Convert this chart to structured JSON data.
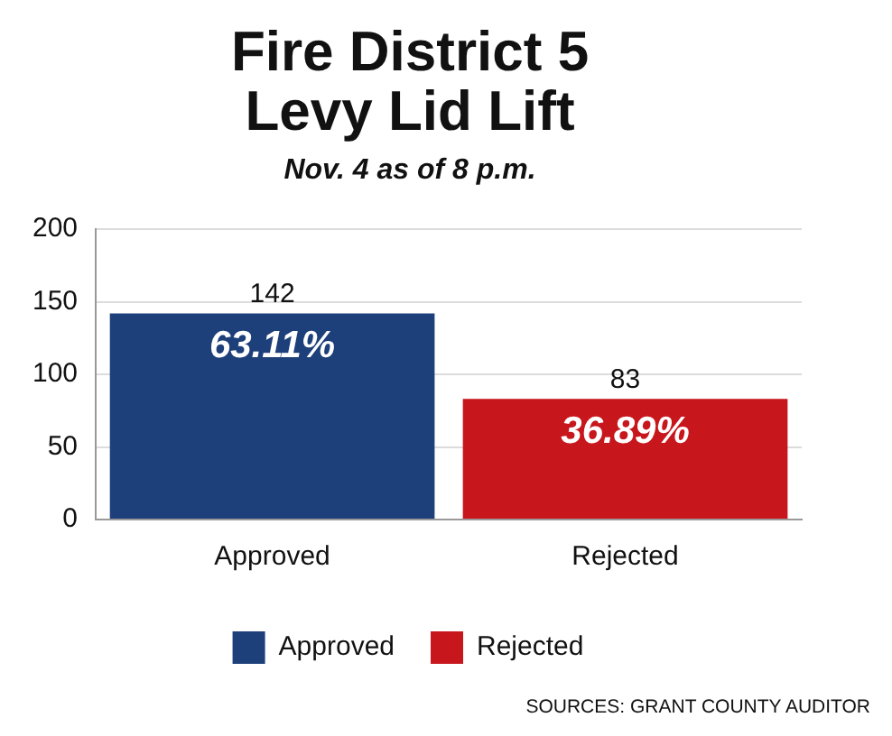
{
  "chart_data": {
    "type": "bar",
    "title": "Fire District 5\nLevy Lid Lift",
    "subtitle": "Nov. 4 as of 8 p.m.",
    "categories": [
      "Approved",
      "Rejected"
    ],
    "series": [
      {
        "name": "Approved",
        "color": "#1d3f7a",
        "values": [
          142,
          null
        ]
      },
      {
        "name": "Rejected",
        "color": "#c8161d",
        "values": [
          null,
          83
        ]
      }
    ],
    "ylim": [
      0,
      200
    ],
    "yticks": [
      0,
      50,
      100,
      150,
      200
    ],
    "grid": "y",
    "legend": "bottom",
    "data_labels": true,
    "annotations": [
      {
        "text": "63.11%",
        "x": "Approved",
        "y": 142
      },
      {
        "text": "36.89%",
        "x": "Rejected",
        "y": 83
      },
      "SOURCES: GRANT COUNTY AUDITOR"
    ]
  }
}
